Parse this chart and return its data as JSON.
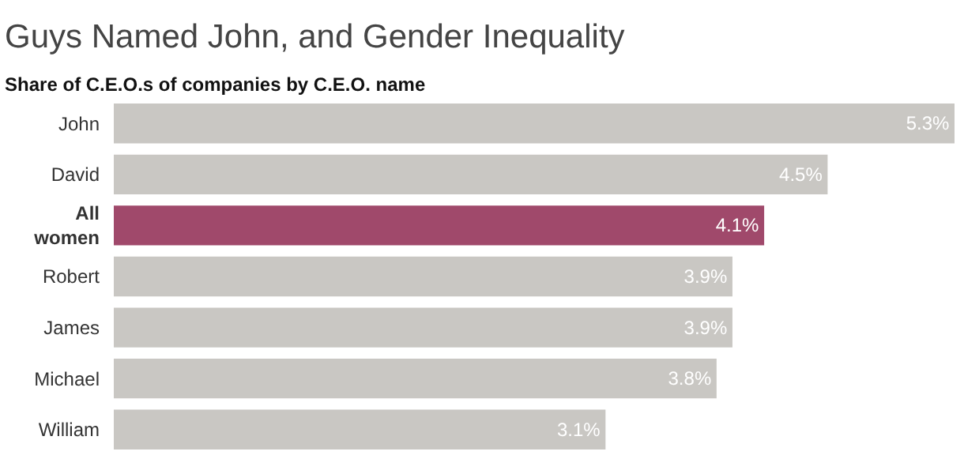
{
  "chart_data": {
    "type": "bar",
    "orientation": "horizontal",
    "title": "Guys Named John, and Gender Inequality",
    "subtitle": "Share of C.E.O.s of companies by C.E.O. name",
    "categories": [
      "John",
      "David",
      "All women",
      "Robert",
      "James",
      "Michael",
      "William"
    ],
    "values": [
      5.3,
      4.5,
      4.1,
      3.9,
      3.9,
      3.8,
      3.1
    ],
    "value_labels": [
      "5.3%",
      "4.5%",
      "4.1%",
      "3.9%",
      "3.9%",
      "3.8%",
      "3.1%"
    ],
    "colors": [
      "#c9c7c3",
      "#c9c7c3",
      "#a0496b",
      "#c9c7c3",
      "#c9c7c3",
      "#c9c7c3",
      "#c9c7c3"
    ],
    "xlim": [
      0,
      5.3
    ]
  }
}
